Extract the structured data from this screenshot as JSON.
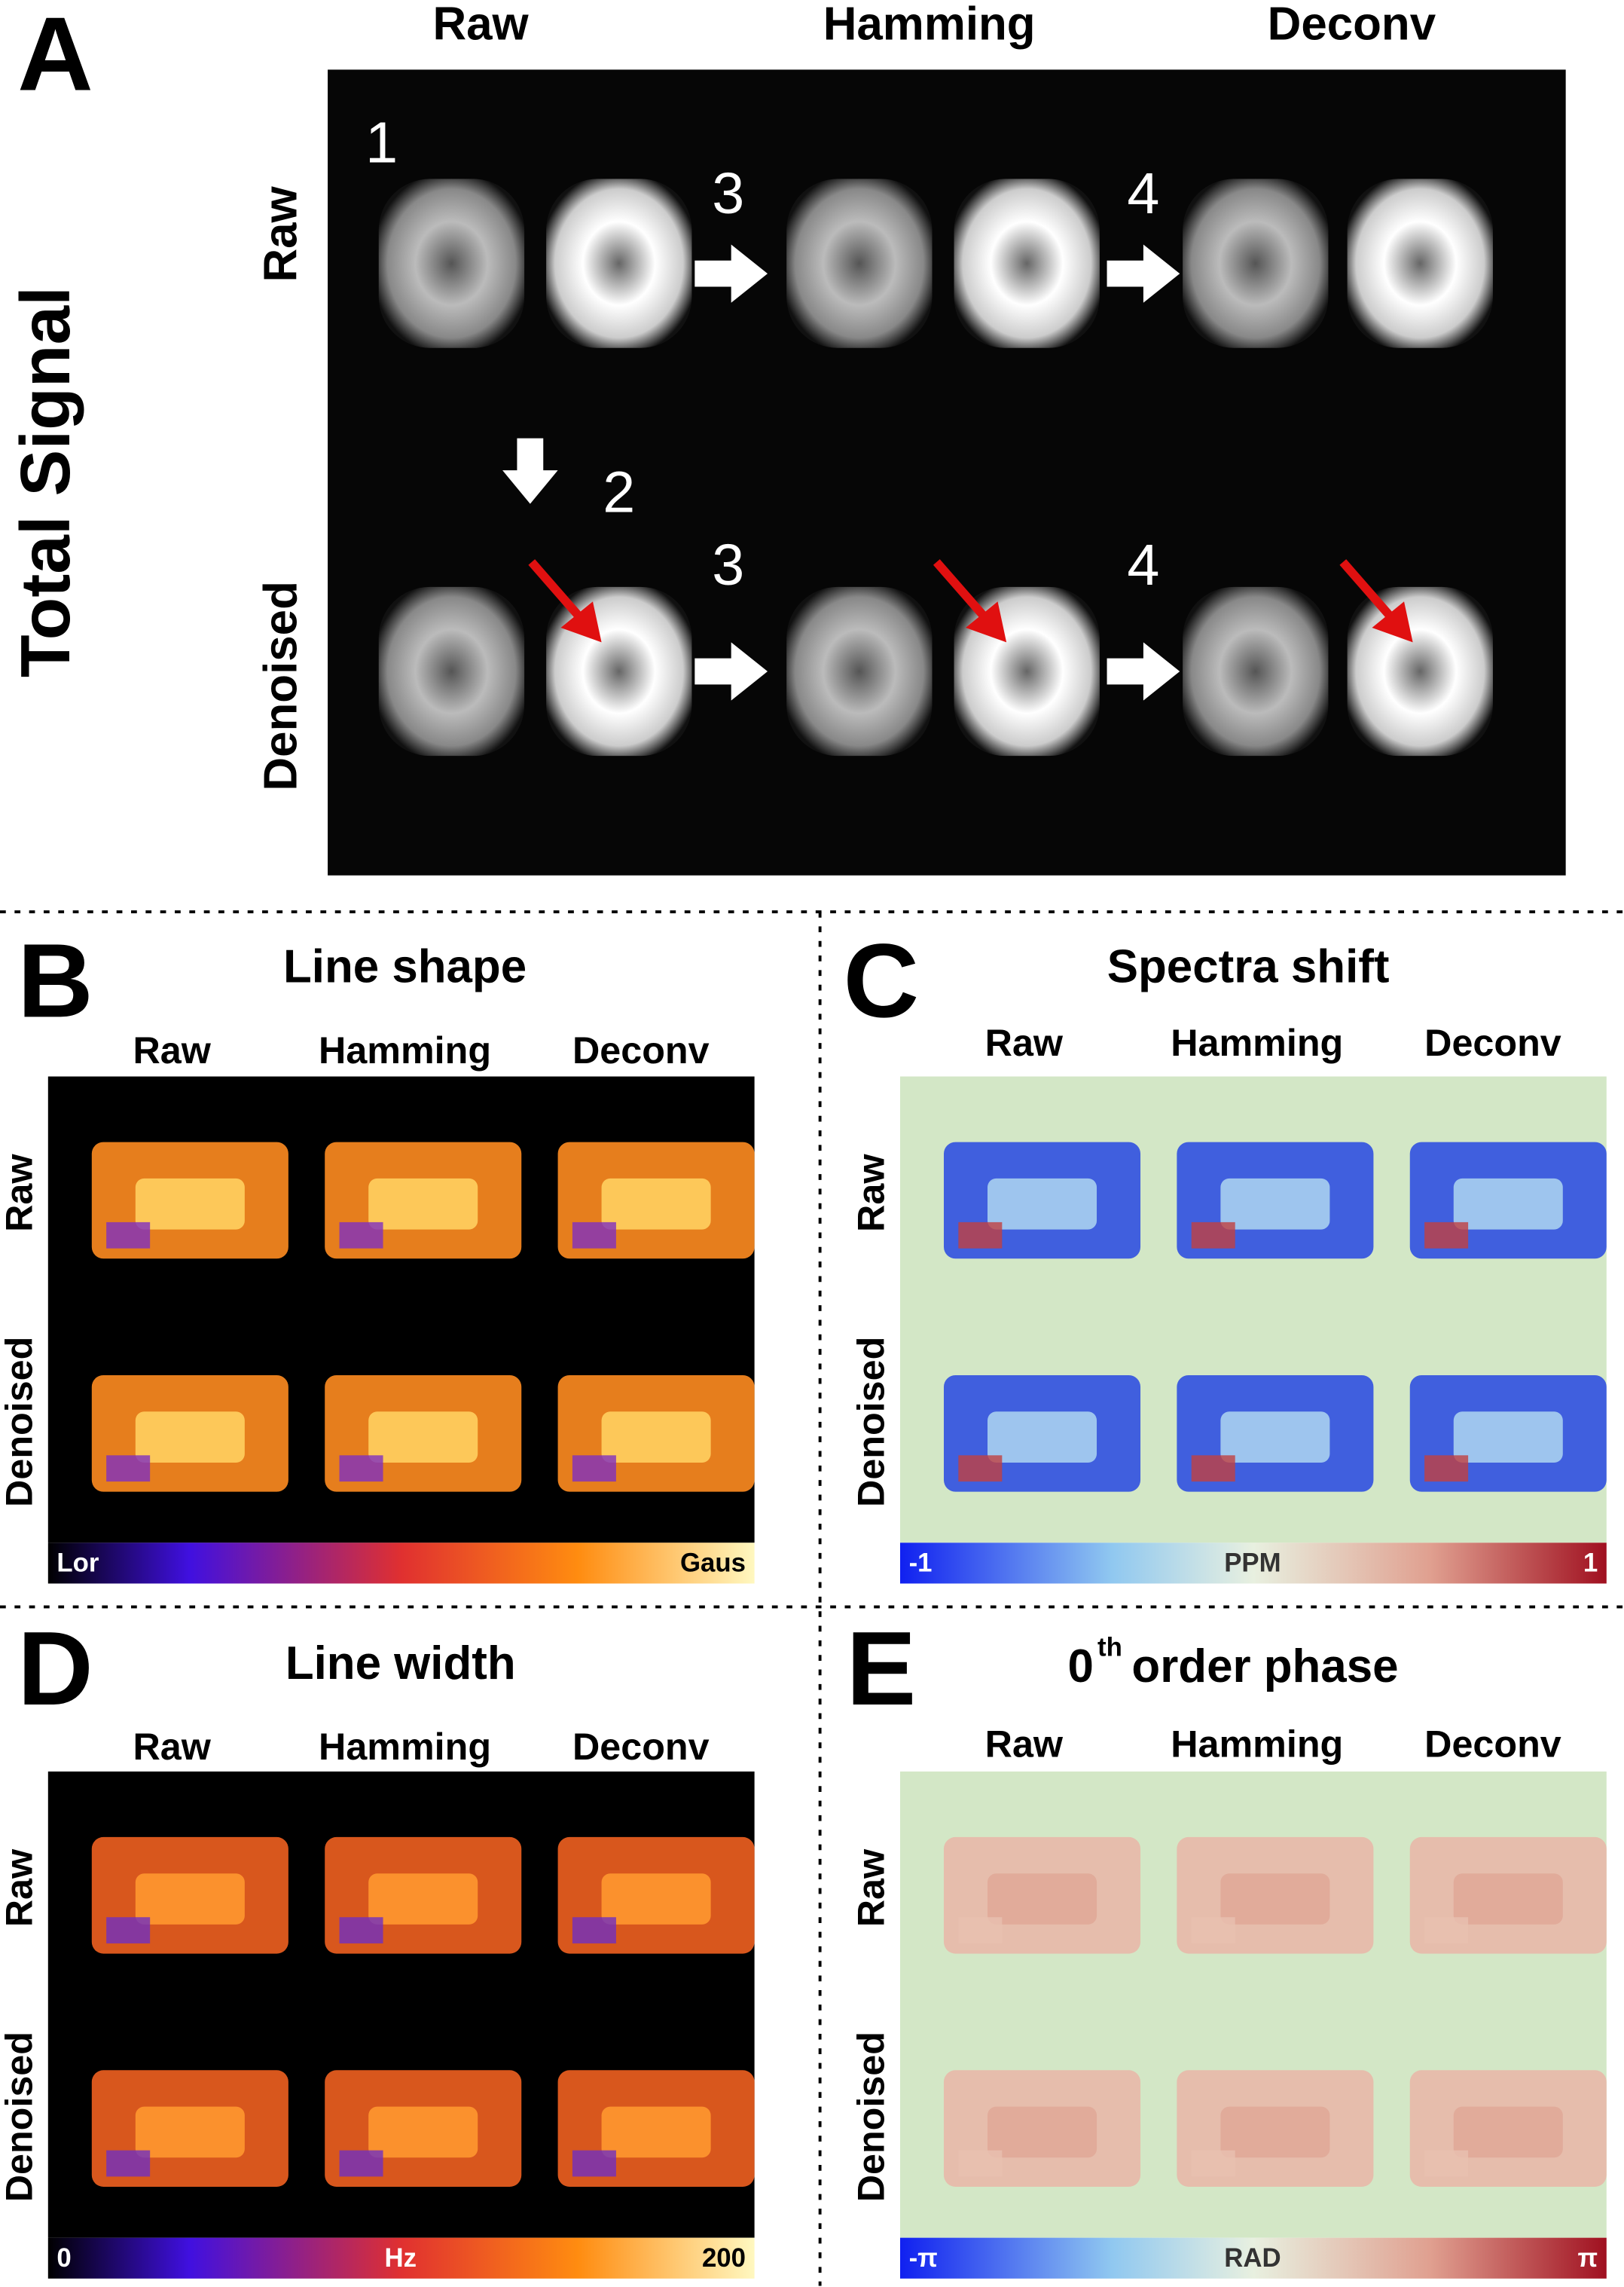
{
  "panel_a": {
    "letter": "A",
    "side_label": "Total Signal",
    "columns": [
      "Raw",
      "Hamming",
      "Deconv"
    ],
    "rows": [
      "Raw",
      "Denoised"
    ],
    "steps": [
      "1",
      "2",
      "3",
      "4"
    ]
  },
  "panel_b": {
    "letter": "B",
    "title": "Line shape",
    "columns": [
      "Raw",
      "Hamming",
      "Deconv"
    ],
    "rows": [
      "Raw",
      "Denoised"
    ],
    "colorbar": [
      "Lor",
      "Gaus"
    ]
  },
  "panel_c": {
    "letter": "C",
    "title": "Spectra shift",
    "columns": [
      "Raw",
      "Hamming",
      "Deconv"
    ],
    "rows": [
      "Raw",
      "Denoised"
    ],
    "colorbar": [
      "-1",
      "PPM",
      "1"
    ]
  },
  "panel_d": {
    "letter": "D",
    "title": "Line width",
    "columns": [
      "Raw",
      "Hamming",
      "Deconv"
    ],
    "rows": [
      "Raw",
      "Denoised"
    ],
    "colorbar": [
      "0",
      "Hz",
      "200"
    ]
  },
  "panel_e": {
    "letter": "E",
    "title_base": "0",
    "title_sup": "th",
    "title_rest": "order phase",
    "columns": [
      "Raw",
      "Hamming",
      "Deconv"
    ],
    "rows": [
      "Raw",
      "Denoised"
    ],
    "colorbar": [
      "-π",
      "RAD",
      "π"
    ]
  }
}
